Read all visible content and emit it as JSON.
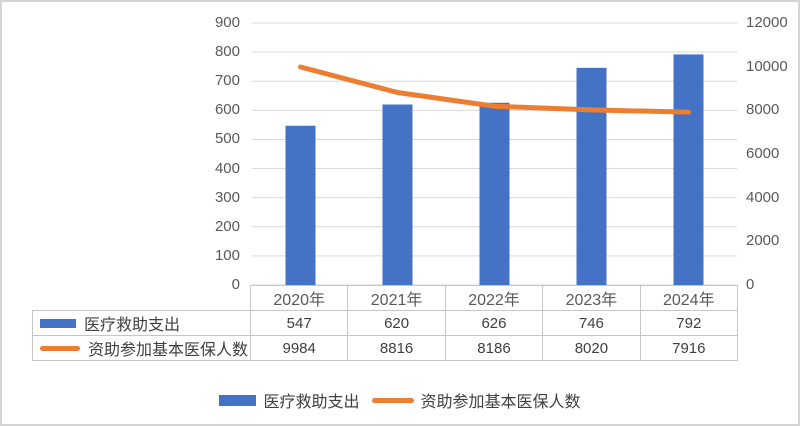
{
  "chart_data": {
    "type": "combo",
    "categories": [
      "2020年",
      "2021年",
      "2022年",
      "2023年",
      "2024年"
    ],
    "series": [
      {
        "name": "医疗救助支出",
        "chart": "bar",
        "axis": "left",
        "color": "#4472C4",
        "values": [
          547,
          620,
          626,
          746,
          792
        ]
      },
      {
        "name": "资助参加基本医保人数",
        "chart": "line",
        "axis": "right",
        "color": "#ED7D31",
        "values": [
          9984,
          8816,
          8186,
          8020,
          7916
        ]
      }
    ],
    "left_axis": {
      "min": 0,
      "max": 900,
      "step": 100,
      "tick_labels": [
        "0",
        "100",
        "200",
        "300",
        "400",
        "500",
        "600",
        "700",
        "800",
        "900"
      ]
    },
    "right_axis": {
      "min": 0,
      "max": 12000,
      "step": 2000,
      "tick_labels": [
        "0",
        "2000",
        "4000",
        "6000",
        "8000",
        "10000",
        "12000"
      ]
    },
    "title": "",
    "xlabel": "",
    "ylabel": "",
    "gridlines": true,
    "legend_position": "bottom",
    "data_table_shown": true
  },
  "colors": {
    "bar": "#4472C4",
    "line": "#ED7D31",
    "gridline": "#D9D9D9",
    "axis_text": "#595959",
    "table_text": "#404040",
    "table_border": "#C6C6C6",
    "frame_border": "#D3D3D3",
    "background": "#FFFFFF"
  }
}
